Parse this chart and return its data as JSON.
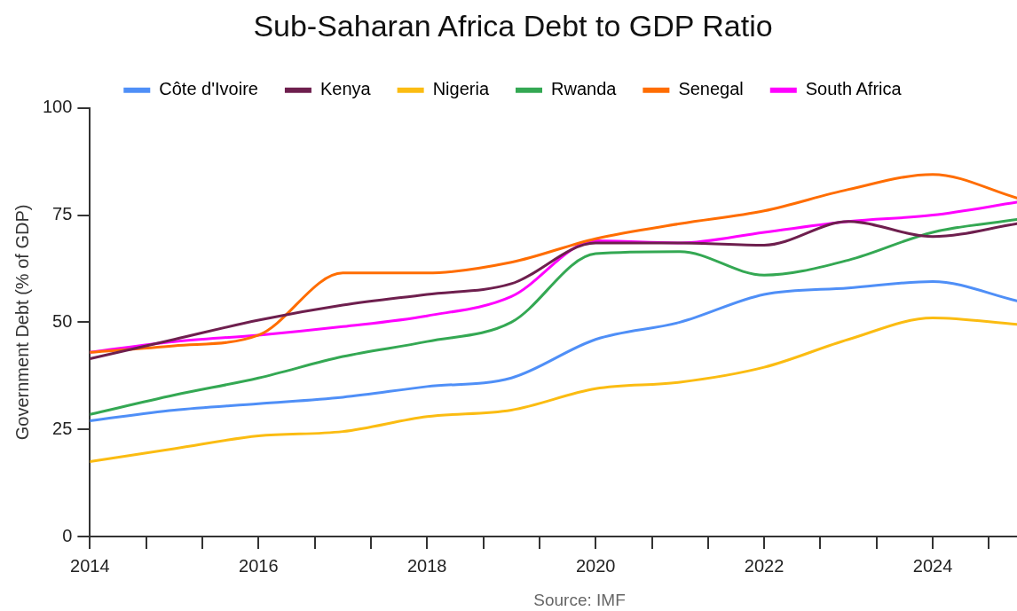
{
  "chart_data": {
    "type": "line",
    "title": "Sub-Saharan Africa Debt to GDP Ratio",
    "ylabel": "Government Debt (% of GDP)",
    "annotations": [
      "Source: IMF"
    ],
    "x": [
      2014,
      2015,
      2016,
      2017,
      2018,
      2019,
      2020,
      2021,
      2022,
      2023,
      2024,
      2025
    ],
    "series": [
      {
        "name": "Côte d'Ivoire",
        "color": "#4f8ff7",
        "values": [
          27,
          29.5,
          31,
          32.5,
          35,
          37,
          46,
          50,
          56.5,
          58,
          59.5,
          55
        ]
      },
      {
        "name": "Kenya",
        "color": "#6e1f4e",
        "values": [
          41.5,
          46,
          50.5,
          54,
          56.5,
          59,
          68.5,
          68.5,
          68,
          73.5,
          70,
          73
        ]
      },
      {
        "name": "Nigeria",
        "color": "#fbbc12",
        "values": [
          17.5,
          20.5,
          23.5,
          24.5,
          28,
          29.5,
          34.5,
          36,
          39.5,
          46,
          51,
          49.5
        ]
      },
      {
        "name": "Rwanda",
        "color": "#34a853",
        "values": [
          28.5,
          33,
          37,
          42,
          45.5,
          50,
          66,
          66.5,
          61,
          64.5,
          71,
          74
        ]
      },
      {
        "name": "Senegal",
        "color": "#ff6d01",
        "values": [
          43,
          44.5,
          47,
          61.5,
          61.5,
          64,
          69.5,
          73,
          76,
          81,
          84.5,
          79
        ]
      },
      {
        "name": "South Africa",
        "color": "#ff00ff",
        "values": [
          43,
          45.5,
          47,
          49,
          51.5,
          56,
          69,
          68.5,
          71,
          73.5,
          75,
          78
        ]
      }
    ],
    "xlim": [
      2014,
      2025
    ],
    "xticks": [
      2014,
      {
        "value": 2014.667,
        "label": null
      },
      {
        "value": 2015.333,
        "label": null
      },
      2016,
      {
        "value": 2016.667,
        "label": null
      },
      {
        "value": 2017.333,
        "label": null
      },
      2018,
      {
        "value": 2018.667,
        "label": null
      },
      {
        "value": 2019.333,
        "label": null
      },
      2020,
      {
        "value": 2020.667,
        "label": null
      },
      {
        "value": 2021.333,
        "label": null
      },
      2022,
      {
        "value": 2022.667,
        "label": null
      },
      {
        "value": 2023.333,
        "label": null
      },
      2024,
      {
        "value": 2024.667,
        "label": null
      }
    ],
    "ylim": [
      0,
      100
    ],
    "yticks": [
      0,
      25,
      50,
      75,
      100
    ],
    "grid": false,
    "legend": "top",
    "marker": "none",
    "line_style": "solid"
  }
}
